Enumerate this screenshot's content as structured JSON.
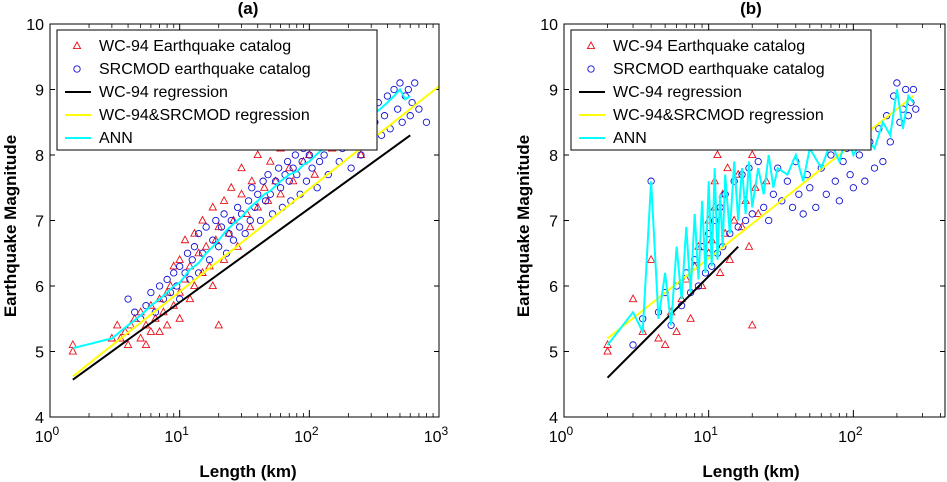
{
  "chart_data": [
    {
      "type": "scatter",
      "panel_label": "(a)",
      "xlabel": "Length (km)",
      "ylabel": "Earthquake Magnitude",
      "xscale": "log",
      "xlim": [
        1,
        1000
      ],
      "ylim": [
        4,
        10
      ],
      "yticks": [
        4,
        5,
        6,
        7,
        8,
        9,
        10
      ],
      "xticks": [
        {
          "base": "10",
          "exp": "0"
        },
        {
          "base": "10",
          "exp": "1"
        },
        {
          "base": "10",
          "exp": "2"
        },
        {
          "base": "10",
          "exp": "3"
        }
      ],
      "legend_position": "top-left",
      "grid": false,
      "legend": [
        {
          "label": "WC-94 Earthquake catalog",
          "kind": "triangle",
          "color": "#e8101a"
        },
        {
          "label": "SRCMOD earthquake catalog",
          "kind": "circle",
          "color": "#1010d8"
        },
        {
          "label": "WC-94 regression",
          "kind": "line",
          "color": "#000000"
        },
        {
          "label": "WC-94&SRCMOD regression",
          "kind": "line",
          "color": "#ffff00"
        },
        {
          "label": "ANN",
          "kind": "line",
          "color": "#00ffff"
        }
      ],
      "wc94_regression": {
        "x": [
          1.5,
          600
        ],
        "y": [
          4.57,
          8.3
        ]
      },
      "combined_regression": {
        "x": [
          1.5,
          1000
        ],
        "y": [
          4.62,
          9.05
        ]
      },
      "wc94_points": [
        [
          1.5,
          5.1
        ],
        [
          1.5,
          5.0
        ],
        [
          3,
          5.2
        ],
        [
          3.3,
          5.4
        ],
        [
          3.5,
          5.2
        ],
        [
          3.8,
          5.3
        ],
        [
          4,
          5.1
        ],
        [
          4.2,
          5.4
        ],
        [
          4.5,
          5.5
        ],
        [
          5,
          5.2
        ],
        [
          5,
          5.6
        ],
        [
          5.5,
          5.1
        ],
        [
          5.5,
          5.4
        ],
        [
          6,
          5.3
        ],
        [
          6,
          5.7
        ],
        [
          6.5,
          5.5
        ],
        [
          7,
          5.3
        ],
        [
          7,
          5.8
        ],
        [
          7.5,
          5.6
        ],
        [
          8,
          5.9
        ],
        [
          8,
          5.4
        ],
        [
          8.5,
          6.0
        ],
        [
          9,
          5.7
        ],
        [
          9,
          6.3
        ],
        [
          10,
          5.9
        ],
        [
          10,
          6.4
        ],
        [
          10,
          5.5
        ],
        [
          11,
          6.1
        ],
        [
          11,
          6.7
        ],
        [
          12,
          5.8
        ],
        [
          12,
          6.3
        ],
        [
          13,
          6.0
        ],
        [
          13,
          6.8
        ],
        [
          14,
          6.5
        ],
        [
          15,
          6.2
        ],
        [
          15,
          7.0
        ],
        [
          16,
          6.6
        ],
        [
          17,
          6.3
        ],
        [
          18,
          7.2
        ],
        [
          18,
          6.0
        ],
        [
          19,
          6.7
        ],
        [
          20,
          6.9
        ],
        [
          20,
          5.4
        ],
        [
          22,
          7.3
        ],
        [
          22,
          6.4
        ],
        [
          24,
          6.8
        ],
        [
          25,
          7.5
        ],
        [
          26,
          7.0
        ],
        [
          28,
          6.6
        ],
        [
          30,
          7.4
        ],
        [
          30,
          7.8
        ],
        [
          33,
          7.1
        ],
        [
          35,
          6.9
        ],
        [
          36,
          7.6
        ],
        [
          40,
          7.2
        ],
        [
          40,
          8.0
        ],
        [
          45,
          7.5
        ],
        [
          48,
          7.3
        ],
        [
          50,
          7.9
        ],
        [
          55,
          7.6
        ],
        [
          60,
          7.4
        ],
        [
          60,
          8.1
        ],
        [
          70,
          7.8
        ],
        [
          75,
          7.6
        ],
        [
          80,
          8.2
        ],
        [
          90,
          7.9
        ],
        [
          100,
          8.0
        ],
        [
          110,
          7.7
        ],
        [
          120,
          8.3
        ],
        [
          150,
          8.1
        ],
        [
          200,
          8.2
        ],
        [
          250,
          8.0
        ]
      ],
      "srcmod_points": [
        [
          4,
          5.8
        ],
        [
          4.5,
          5.6
        ],
        [
          5,
          5.5
        ],
        [
          5.5,
          5.7
        ],
        [
          6,
          5.9
        ],
        [
          6.5,
          5.6
        ],
        [
          7,
          6.0
        ],
        [
          7.5,
          5.8
        ],
        [
          8,
          6.1
        ],
        [
          8.5,
          5.9
        ],
        [
          9,
          6.2
        ],
        [
          9.5,
          6.0
        ],
        [
          10,
          6.3
        ],
        [
          10,
          5.8
        ],
        [
          11,
          6.2
        ],
        [
          11.5,
          6.5
        ],
        [
          12,
          6.1
        ],
        [
          12.5,
          6.4
        ],
        [
          13,
          6.6
        ],
        [
          14,
          6.2
        ],
        [
          14,
          6.8
        ],
        [
          15,
          6.5
        ],
        [
          16,
          6.9
        ],
        [
          17,
          6.4
        ],
        [
          18,
          6.7
        ],
        [
          19,
          7.0
        ],
        [
          20,
          6.6
        ],
        [
          21,
          6.9
        ],
        [
          22,
          7.1
        ],
        [
          23,
          6.5
        ],
        [
          24,
          6.8
        ],
        [
          25,
          7.0
        ],
        [
          26,
          6.7
        ],
        [
          28,
          7.2
        ],
        [
          29,
          6.9
        ],
        [
          30,
          7.1
        ],
        [
          32,
          6.8
        ],
        [
          34,
          7.3
        ],
        [
          35,
          7.0
        ],
        [
          36,
          7.5
        ],
        [
          38,
          7.2
        ],
        [
          40,
          7.4
        ],
        [
          42,
          7.0
        ],
        [
          44,
          7.6
        ],
        [
          46,
          7.3
        ],
        [
          48,
          7.7
        ],
        [
          50,
          7.4
        ],
        [
          52,
          7.1
        ],
        [
          55,
          7.6
        ],
        [
          58,
          7.8
        ],
        [
          60,
          7.5
        ],
        [
          62,
          7.2
        ],
        [
          65,
          7.7
        ],
        [
          68,
          7.9
        ],
        [
          70,
          7.6
        ],
        [
          72,
          7.3
        ],
        [
          75,
          7.8
        ],
        [
          78,
          8.0
        ],
        [
          80,
          7.7
        ],
        [
          85,
          7.4
        ],
        [
          88,
          7.9
        ],
        [
          90,
          8.1
        ],
        [
          95,
          7.6
        ],
        [
          100,
          8.0
        ],
        [
          105,
          7.8
        ],
        [
          110,
          8.2
        ],
        [
          115,
          7.5
        ],
        [
          120,
          7.9
        ],
        [
          125,
          8.3
        ],
        [
          130,
          8.0
        ],
        [
          140,
          7.7
        ],
        [
          150,
          8.2
        ],
        [
          160,
          8.4
        ],
        [
          170,
          7.9
        ],
        [
          180,
          8.1
        ],
        [
          190,
          8.5
        ],
        [
          200,
          8.2
        ],
        [
          210,
          7.8
        ],
        [
          220,
          8.3
        ],
        [
          240,
          8.6
        ],
        [
          250,
          8.0
        ],
        [
          260,
          8.4
        ],
        [
          280,
          8.7
        ],
        [
          300,
          8.2
        ],
        [
          320,
          8.5
        ],
        [
          340,
          8.8
        ],
        [
          360,
          8.3
        ],
        [
          380,
          8.6
        ],
        [
          400,
          8.9
        ],
        [
          420,
          8.4
        ],
        [
          450,
          9.0
        ],
        [
          480,
          8.7
        ],
        [
          500,
          9.1
        ],
        [
          520,
          8.5
        ],
        [
          550,
          8.9
        ],
        [
          580,
          9.0
        ],
        [
          600,
          8.6
        ],
        [
          620,
          8.8
        ],
        [
          650,
          9.1
        ],
        [
          700,
          8.7
        ],
        [
          800,
          8.5
        ]
      ],
      "ann_curve": {
        "x": [
          1.5,
          3,
          4,
          5,
          6,
          7,
          8,
          9,
          10,
          12,
          14,
          16,
          18,
          20,
          23,
          26,
          30,
          35,
          40,
          45,
          50,
          60,
          70,
          80,
          90,
          100,
          120,
          140,
          160,
          180,
          200,
          250,
          300,
          350,
          400,
          450,
          500,
          550,
          600
        ],
        "y": [
          5.05,
          5.2,
          5.4,
          5.55,
          5.7,
          5.8,
          5.9,
          6.0,
          6.05,
          6.25,
          6.35,
          6.5,
          6.6,
          6.7,
          6.85,
          6.95,
          7.05,
          7.2,
          7.3,
          7.4,
          7.45,
          7.6,
          7.7,
          7.75,
          7.85,
          7.9,
          8.05,
          8.15,
          8.2,
          8.3,
          8.35,
          8.5,
          8.6,
          8.7,
          8.8,
          8.9,
          9.0,
          8.85,
          8.9
        ]
      }
    },
    {
      "type": "scatter",
      "panel_label": "(b)",
      "xlabel": "Length (km)",
      "ylabel": "Earthquake Magnitude",
      "xscale": "log",
      "xlim": [
        1,
        1000
      ],
      "ylim": [
        4,
        10
      ],
      "yticks": [
        4,
        5,
        6,
        7,
        8,
        9,
        10
      ],
      "xticks": [
        {
          "base": "10",
          "exp": "0"
        },
        {
          "base": "10",
          "exp": "1"
        },
        {
          "base": "10",
          "exp": "2"
        }
      ],
      "legend_position": "top-left",
      "grid": false,
      "legend": [
        {
          "label": "WC-94 Earthquake catalog",
          "kind": "triangle",
          "color": "#e8101a"
        },
        {
          "label": "SRCMOD earthquake catalog",
          "kind": "circle",
          "color": "#1010d8"
        },
        {
          "label": "WC-94 regression",
          "kind": "line",
          "color": "#000000"
        },
        {
          "label": "WC-94&SRCMOD regression",
          "kind": "line",
          "color": "#ffff00"
        },
        {
          "label": "ANN",
          "kind": "line",
          "color": "#00ffff"
        }
      ],
      "wc94_regression": {
        "x": [
          2,
          16
        ],
        "y": [
          4.6,
          6.6
        ]
      },
      "combined_regression": {
        "x": [
          2,
          260
        ],
        "y": [
          5.2,
          8.9
        ]
      },
      "wc94_points": [
        [
          2,
          5.1
        ],
        [
          2,
          5.0
        ],
        [
          3,
          5.8
        ],
        [
          3.5,
          5.3
        ],
        [
          4,
          6.4
        ],
        [
          4.5,
          5.2
        ],
        [
          5,
          5.1
        ],
        [
          5.5,
          5.6
        ],
        [
          6,
          5.3
        ],
        [
          6.5,
          5.8
        ],
        [
          7,
          6.1
        ],
        [
          7.5,
          5.5
        ],
        [
          8,
          6.3
        ],
        [
          8.5,
          6.6
        ],
        [
          9,
          6.0
        ],
        [
          10,
          7.0
        ],
        [
          10,
          6.5
        ],
        [
          10.5,
          6.7
        ],
        [
          11,
          7.6
        ],
        [
          11,
          7.2
        ],
        [
          11.5,
          8.0
        ],
        [
          12,
          6.2
        ],
        [
          12.5,
          7.4
        ],
        [
          13,
          6.8
        ],
        [
          13.5,
          7.8
        ],
        [
          14,
          6.4
        ],
        [
          15,
          7.0
        ],
        [
          16,
          7.7
        ],
        [
          17,
          6.9
        ],
        [
          18,
          7.3
        ],
        [
          19,
          6.6
        ],
        [
          20,
          8.0
        ],
        [
          20,
          5.4
        ],
        [
          21,
          7.5
        ],
        [
          22,
          7.1
        ],
        [
          25,
          7.6
        ]
      ],
      "srcmod_points": [
        [
          3,
          5.1
        ],
        [
          3.5,
          5.5
        ],
        [
          4,
          7.6
        ],
        [
          4.5,
          5.6
        ],
        [
          5,
          5.9
        ],
        [
          5.5,
          5.4
        ],
        [
          6,
          6.0
        ],
        [
          6.5,
          5.7
        ],
        [
          7,
          6.2
        ],
        [
          7.5,
          5.9
        ],
        [
          8,
          6.4
        ],
        [
          8.5,
          6.0
        ],
        [
          9,
          6.6
        ],
        [
          9.5,
          6.2
        ],
        [
          10,
          6.8
        ],
        [
          10.5,
          6.3
        ],
        [
          11,
          7.0
        ],
        [
          11.5,
          6.5
        ],
        [
          12,
          7.2
        ],
        [
          12.5,
          6.6
        ],
        [
          13,
          7.4
        ],
        [
          14,
          6.8
        ],
        [
          15,
          7.6
        ],
        [
          16,
          6.9
        ],
        [
          17,
          7.7
        ],
        [
          18,
          7.0
        ],
        [
          19,
          7.8
        ],
        [
          20,
          7.1
        ],
        [
          22,
          7.9
        ],
        [
          24,
          7.2
        ],
        [
          26,
          7.0
        ],
        [
          28,
          7.4
        ],
        [
          30,
          7.8
        ],
        [
          32,
          7.3
        ],
        [
          35,
          7.6
        ],
        [
          38,
          7.2
        ],
        [
          40,
          7.9
        ],
        [
          42,
          7.4
        ],
        [
          45,
          7.1
        ],
        [
          48,
          7.7
        ],
        [
          50,
          7.5
        ],
        [
          55,
          7.2
        ],
        [
          60,
          7.8
        ],
        [
          65,
          7.4
        ],
        [
          70,
          8.0
        ],
        [
          75,
          7.6
        ],
        [
          80,
          7.3
        ],
        [
          85,
          7.9
        ],
        [
          90,
          8.1
        ],
        [
          95,
          7.7
        ],
        [
          100,
          7.5
        ],
        [
          110,
          8.0
        ],
        [
          120,
          7.6
        ],
        [
          130,
          8.2
        ],
        [
          140,
          7.8
        ],
        [
          150,
          8.4
        ],
        [
          160,
          7.9
        ],
        [
          170,
          8.6
        ],
        [
          180,
          8.2
        ],
        [
          190,
          8.9
        ],
        [
          200,
          9.1
        ],
        [
          210,
          8.5
        ],
        [
          220,
          8.7
        ],
        [
          230,
          9.0
        ],
        [
          240,
          8.6
        ],
        [
          250,
          8.8
        ],
        [
          260,
          9.0
        ],
        [
          270,
          8.7
        ]
      ],
      "ann_curve": {
        "x": [
          2,
          3,
          3.5,
          4,
          4.5,
          5,
          5.5,
          6,
          6.5,
          7,
          7.5,
          8,
          8.5,
          9,
          9.5,
          10,
          10.5,
          11,
          11.5,
          12,
          12.5,
          13,
          14,
          15,
          16,
          17,
          18,
          19,
          20,
          22,
          24,
          26,
          28,
          30,
          35,
          40,
          45,
          50,
          60,
          70,
          80,
          90,
          100,
          120,
          140,
          160,
          180,
          200,
          220,
          240,
          260
        ],
        "y": [
          5.1,
          5.6,
          5.3,
          7.6,
          5.5,
          6.2,
          5.4,
          6.6,
          5.8,
          6.9,
          5.9,
          7.1,
          6.1,
          7.3,
          6.2,
          7.6,
          6.3,
          7.8,
          6.4,
          7.4,
          6.6,
          7.7,
          6.8,
          7.9,
          7.0,
          7.8,
          7.1,
          7.9,
          7.2,
          7.8,
          7.4,
          8.0,
          7.5,
          7.8,
          7.7,
          8.0,
          7.6,
          8.1,
          7.8,
          8.2,
          7.9,
          8.3,
          8.0,
          8.3,
          8.1,
          8.5,
          8.3,
          9.0,
          8.4,
          8.9,
          8.8
        ]
      }
    }
  ]
}
